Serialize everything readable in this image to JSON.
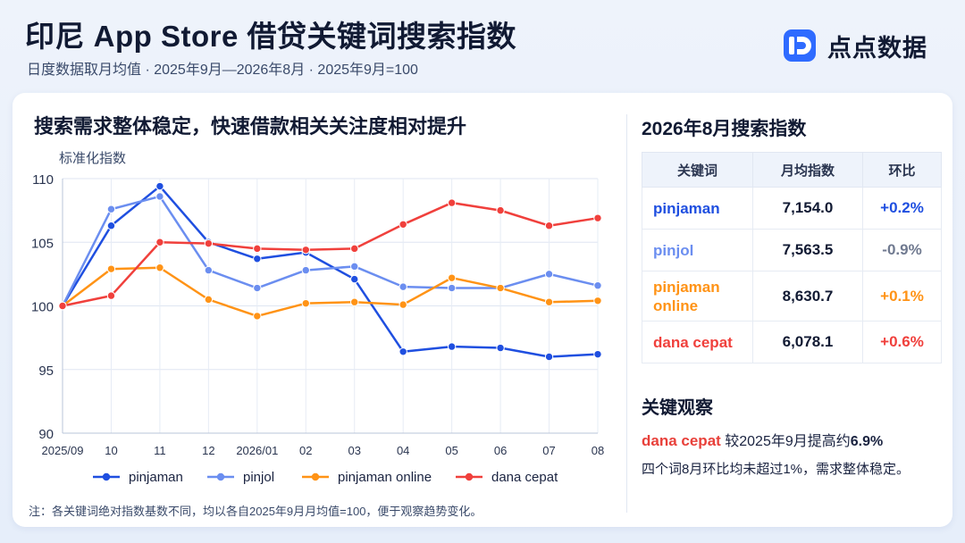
{
  "header": {
    "title": "印尼 App Store 借贷关键词搜索指数",
    "subtitle": "日度数据取月均值 · 2025年9月—2026年8月 · 2025年9月=100",
    "brand": "点点数据"
  },
  "left_panel": {
    "title": "搜索需求整体稳定，快速借款相关关注度相对提升"
  },
  "chart_data": {
    "type": "line",
    "title": "",
    "ylabel": "标准化指数",
    "xlabel": "",
    "x": [
      "2025/09",
      "10",
      "11",
      "12",
      "2026/01",
      "02",
      "03",
      "04",
      "05",
      "06",
      "07",
      "08"
    ],
    "ylim": [
      90,
      110
    ],
    "yticks": [
      90,
      95,
      100,
      105,
      110
    ],
    "grid": true,
    "legend": "bottom",
    "series": [
      {
        "name": "pinjaman",
        "color": "#1f4fe0",
        "values": [
          100,
          106.3,
          109.4,
          105.0,
          103.7,
          104.2,
          102.1,
          96.4,
          96.8,
          96.7,
          96.0,
          96.2
        ]
      },
      {
        "name": "pinjol",
        "color": "#6b8ef0",
        "values": [
          100,
          107.6,
          108.6,
          102.8,
          101.4,
          102.8,
          103.1,
          101.5,
          101.4,
          101.4,
          102.5,
          101.6
        ]
      },
      {
        "name": "pinjaman online",
        "color": "#ff9316",
        "values": [
          100,
          102.9,
          103.0,
          100.5,
          99.2,
          100.2,
          100.3,
          100.1,
          102.2,
          101.4,
          100.3,
          100.4
        ]
      },
      {
        "name": "dana cepat",
        "color": "#f0403c",
        "values": [
          100,
          100.8,
          105.0,
          104.9,
          104.5,
          104.4,
          104.5,
          106.4,
          108.1,
          107.5,
          106.3,
          106.9
        ]
      }
    ]
  },
  "right_panel": {
    "title": "2026年8月搜索指数",
    "table": {
      "headers": [
        "关键词",
        "月均指数",
        "环比"
      ],
      "rows": [
        {
          "keyword": "pinjaman",
          "value": "7,154.0",
          "change": "+0.2%",
          "kw_color": "#1f4fe0",
          "chg_color": "#1f4fe0"
        },
        {
          "keyword": "pinjol",
          "value": "7,563.5",
          "change": "-0.9%",
          "kw_color": "#6b8ef0",
          "chg_color": "#707a90"
        },
        {
          "keyword": "pinjaman online",
          "value": "8,630.7",
          "change": "+0.1%",
          "kw_color": "#ff9316",
          "chg_color": "#ff9316"
        },
        {
          "keyword": "dana cepat",
          "value": "6,078.1",
          "change": "+0.6%",
          "kw_color": "#f0403c",
          "chg_color": "#f0403c"
        }
      ]
    },
    "observations": {
      "title": "关键观察",
      "line1_highlight": "dana cepat",
      "line1_text": " 较2025年9月提高约",
      "line1_value": "6.9%",
      "line2": "四个词8月环比均未超过1%，需求整体稳定。"
    }
  },
  "note": "注：各关键词绝对指数基数不同，均以各自2025年9月月均值=100，便于观察趋势变化。"
}
